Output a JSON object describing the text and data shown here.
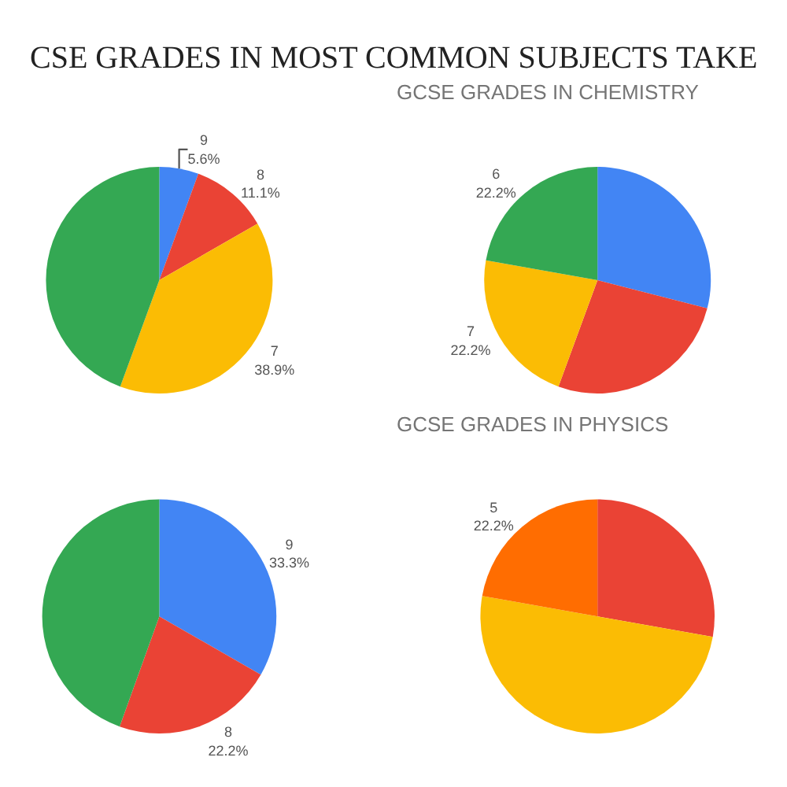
{
  "chart_data": [
    {
      "type": "other",
      "title": "CSE GRADES IN MOST COMMON SUBJECTS TAKE"
    },
    {
      "type": "pie",
      "categories": [
        "9",
        "8",
        "7",
        null
      ],
      "values": [
        5.6,
        11.1,
        38.9,
        44.4
      ],
      "value_labels": [
        "5.6%",
        "11.1%",
        "38.9%",
        null
      ],
      "colors": [
        "#4285f4",
        "#ea4335",
        "#fbbc04",
        "#34a853"
      ]
    },
    {
      "type": "pie",
      "title": "GCSE GRADES IN CHEMISTRY",
      "categories": [
        null,
        null,
        "7",
        "6"
      ],
      "values": [
        29.0,
        26.6,
        22.2,
        22.2
      ],
      "value_labels": [
        null,
        null,
        "22.2%",
        "22.2%"
      ],
      "colors": [
        "#4285f4",
        "#ea4335",
        "#fbbc04",
        "#34a853"
      ]
    },
    {
      "type": "pie",
      "categories": [
        "9",
        "8",
        null
      ],
      "values": [
        33.3,
        22.2,
        44.5
      ],
      "value_labels": [
        "33.3%",
        "22.2%",
        null
      ],
      "colors": [
        "#4285f4",
        "#ea4335",
        "#34a853"
      ]
    },
    {
      "type": "pie",
      "title": "GCSE GRADES IN PHYSICS",
      "categories": [
        null,
        null,
        "5"
      ],
      "values": [
        27.8,
        50.0,
        22.2
      ],
      "value_labels": [
        null,
        null,
        "22.2%"
      ],
      "colors": [
        "#ea4335",
        "#fbbc04",
        "#ff6d01"
      ]
    }
  ]
}
